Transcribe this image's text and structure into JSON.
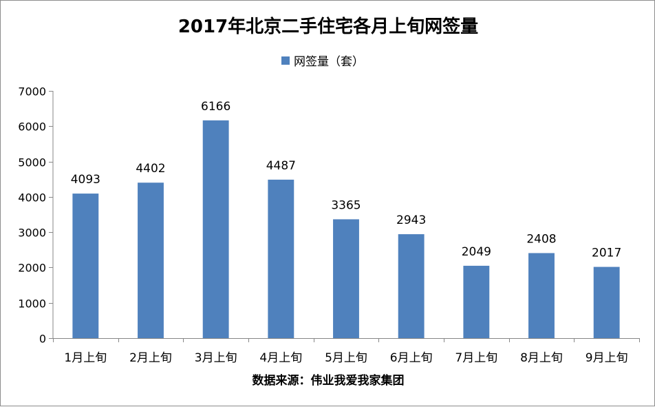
{
  "chart_data": {
    "type": "bar",
    "title": "2017年北京二手住宅各月上旬网签量",
    "categories": [
      "1月上旬",
      "2月上旬",
      "3月上旬",
      "4月上旬",
      "5月上旬",
      "6月上旬",
      "7月上旬",
      "8月上旬",
      "9月上旬"
    ],
    "series": [
      {
        "name": "网签量（套）",
        "values": [
          4093,
          4402,
          6166,
          4487,
          3365,
          2943,
          2049,
          2408,
          2017
        ],
        "color": "#4f81bd"
      }
    ],
    "ylim": [
      0,
      7000
    ],
    "yticks": [
      0,
      1000,
      2000,
      3000,
      4000,
      5000,
      6000,
      7000
    ],
    "data_labels": true,
    "grid": false,
    "legend_position": "top",
    "source": "数据来源：伟业我爱我家集团"
  }
}
